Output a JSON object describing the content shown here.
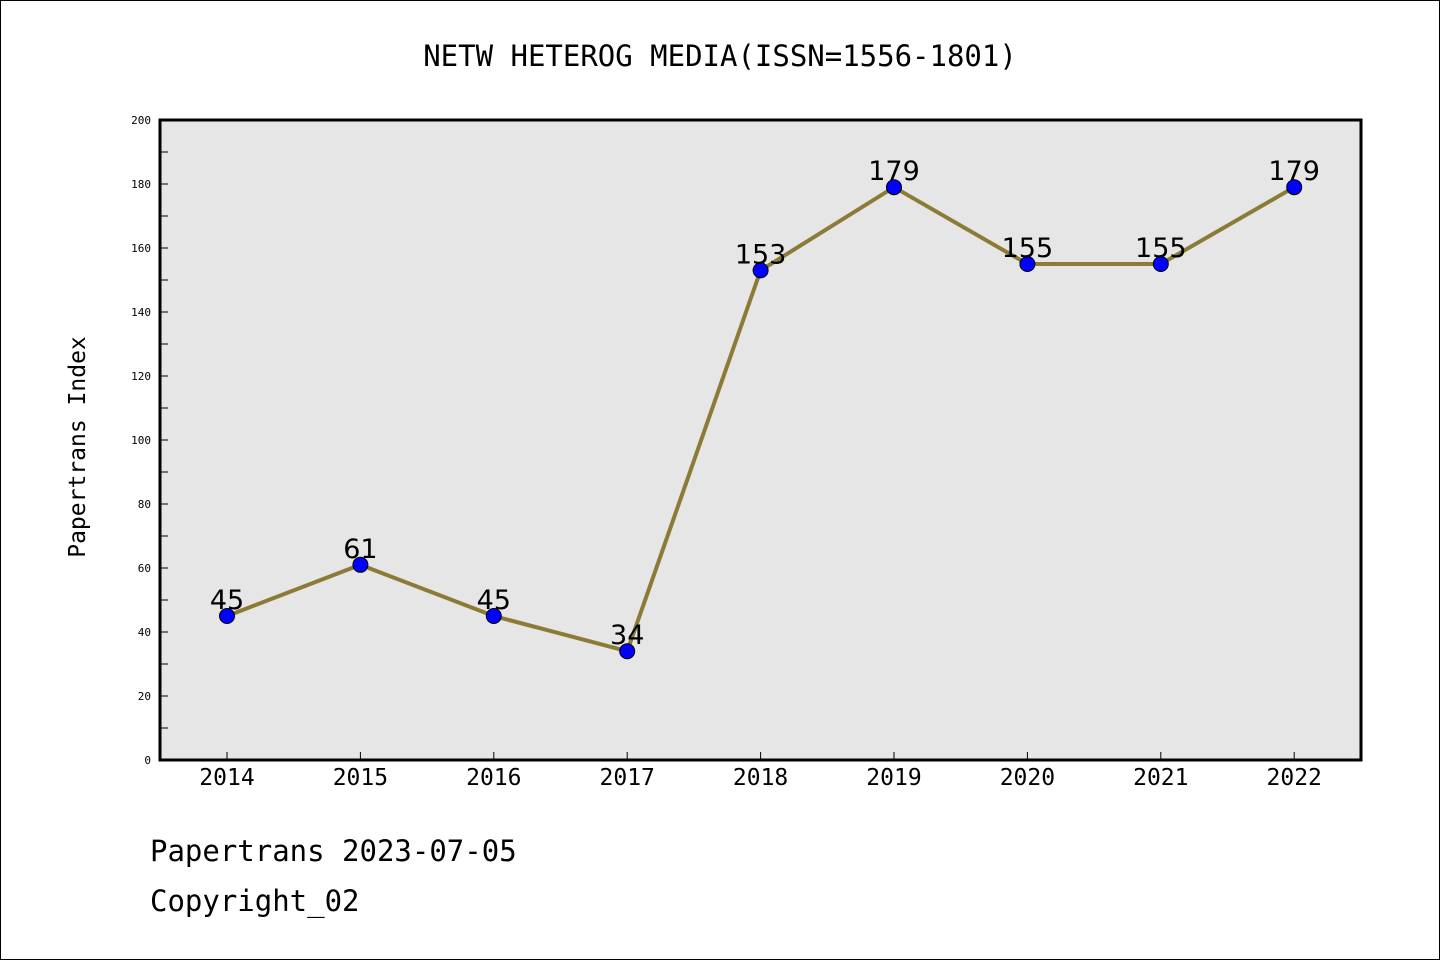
{
  "chart_data": {
    "type": "line",
    "title": "NETW HETEROG MEDIA(ISSN=1556-1801)",
    "xlabel": "",
    "ylabel": "Papertrans Index",
    "categories": [
      "2014",
      "2015",
      "2016",
      "2017",
      "2018",
      "2019",
      "2020",
      "2021",
      "2022"
    ],
    "series": [
      {
        "values": [
          45,
          61,
          45,
          34,
          153,
          179,
          155,
          155,
          179
        ]
      }
    ],
    "data_labels": [
      "45",
      "61",
      "45",
      "34",
      "153",
      "179",
      "155",
      "155",
      "179"
    ],
    "ylim": [
      0,
      200
    ],
    "yticks": [
      0,
      20,
      40,
      60,
      80,
      100,
      120,
      140,
      160,
      180,
      200
    ],
    "ytick_labels": [
      "0",
      "20",
      "40",
      "60",
      "80",
      "100",
      "120",
      "140",
      "160",
      "180",
      "200"
    ],
    "grid": false,
    "legend": "none",
    "colors": {
      "line": "#8c7b36",
      "marker": "#0000ff",
      "plot_background": "#e6e6e6"
    }
  },
  "footer": {
    "line1": "Papertrans 2023-07-05",
    "line2": "Copyright_02"
  }
}
